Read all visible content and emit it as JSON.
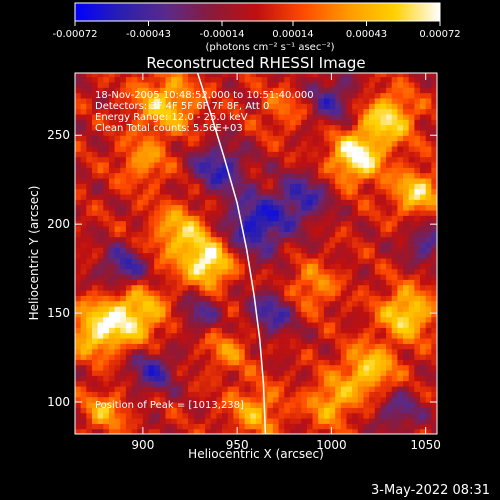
{
  "chart_data": {
    "type": "heatmap",
    "title": "Reconstructed RHESSI Image",
    "xlabel": "Heliocentric X (arcsec)",
    "ylabel": "Heliocentric Y (arcsec)",
    "xlim": [
      864,
      1056
    ],
    "ylim": [
      82,
      285
    ],
    "x_ticks": [
      900,
      950,
      1000,
      1050
    ],
    "y_ticks": [
      100,
      150,
      200,
      250
    ],
    "colorbar": {
      "range": [
        -0.00072,
        0.00072
      ],
      "ticks": [
        -0.00072,
        -0.00043,
        -0.00014,
        0.00014,
        0.00043,
        0.00072
      ],
      "tick_labels": [
        "-0.00072",
        "-0.00043",
        "-0.00014",
        "0.00014",
        "0.00043",
        "0.00072"
      ],
      "unit_label": "(photons cm⁻² s⁻¹ asec⁻²)",
      "colormap": [
        "#0000ff",
        "#2a1fb0",
        "#5a2a8a",
        "#8a1a3a",
        "#c01010",
        "#ff4a00",
        "#ff9a00",
        "#ffd000",
        "#ffffff"
      ]
    },
    "annotations": {
      "time_range": "18-Nov-2005 10:48:52.000 to 10:51:40.000",
      "detectors": "Detectors: 3F 4F 5F 6F 7F 8F, Att 0",
      "energy_range": "Energy Range: 12.0 - 25.0 keV",
      "clean": "Clean    Total counts: 5.56E+03",
      "peak": "Position of Peak = [1013,238]"
    },
    "peak": [
      1013,
      238
    ],
    "bright_regions": [
      {
        "x": 935,
        "y": 178,
        "sigma": 9,
        "value": 0.0007
      },
      {
        "x": 920,
        "y": 195,
        "sigma": 11,
        "value": 0.0005
      },
      {
        "x": 895,
        "y": 150,
        "sigma": 12,
        "value": 0.0006
      },
      {
        "x": 875,
        "y": 140,
        "sigma": 10,
        "value": 0.00055
      },
      {
        "x": 912,
        "y": 268,
        "sigma": 12,
        "value": 0.0005
      },
      {
        "x": 900,
        "y": 235,
        "sigma": 9,
        "value": 0.00035
      },
      {
        "x": 1013,
        "y": 238,
        "sigma": 10,
        "value": 0.00072
      },
      {
        "x": 1030,
        "y": 260,
        "sigma": 10,
        "value": 0.0006
      },
      {
        "x": 1045,
        "y": 218,
        "sigma": 9,
        "value": 0.00055
      },
      {
        "x": 1040,
        "y": 150,
        "sigma": 10,
        "value": 0.0006
      },
      {
        "x": 1020,
        "y": 118,
        "sigma": 10,
        "value": 0.00055
      },
      {
        "x": 1000,
        "y": 100,
        "sigma": 9,
        "value": 0.00045
      },
      {
        "x": 960,
        "y": 95,
        "sigma": 10,
        "value": 0.0004
      },
      {
        "x": 990,
        "y": 165,
        "sigma": 9,
        "value": 0.00035
      },
      {
        "x": 880,
        "y": 95,
        "sigma": 8,
        "value": 0.0004
      },
      {
        "x": 975,
        "y": 265,
        "sigma": 9,
        "value": 0.00025
      },
      {
        "x": 945,
        "y": 130,
        "sigma": 9,
        "value": 0.0003
      }
    ],
    "dark_regions": [
      {
        "x": 960,
        "y": 200,
        "sigma": 12,
        "value": -0.0006
      },
      {
        "x": 890,
        "y": 175,
        "sigma": 9,
        "value": -0.0005
      },
      {
        "x": 940,
        "y": 232,
        "sigma": 10,
        "value": -0.0005
      },
      {
        "x": 985,
        "y": 215,
        "sigma": 10,
        "value": -0.00045
      },
      {
        "x": 1000,
        "y": 270,
        "sigma": 10,
        "value": -0.0004
      },
      {
        "x": 968,
        "y": 150,
        "sigma": 9,
        "value": -0.00045
      },
      {
        "x": 905,
        "y": 118,
        "sigma": 9,
        "value": -0.00045
      },
      {
        "x": 1050,
        "y": 190,
        "sigma": 8,
        "value": -0.0004
      },
      {
        "x": 1035,
        "y": 95,
        "sigma": 9,
        "value": -0.00035
      },
      {
        "x": 930,
        "y": 150,
        "sigma": 8,
        "value": -0.00035
      }
    ],
    "limb_curve": [
      [
        929,
        285
      ],
      [
        936,
        262
      ],
      [
        943,
        238
      ],
      [
        950,
        212
      ],
      [
        955,
        186
      ],
      [
        959,
        160
      ],
      [
        962,
        135
      ],
      [
        964,
        110
      ],
      [
        965,
        82
      ]
    ]
  },
  "footer": {
    "date": "3-May-2022 08:31"
  }
}
